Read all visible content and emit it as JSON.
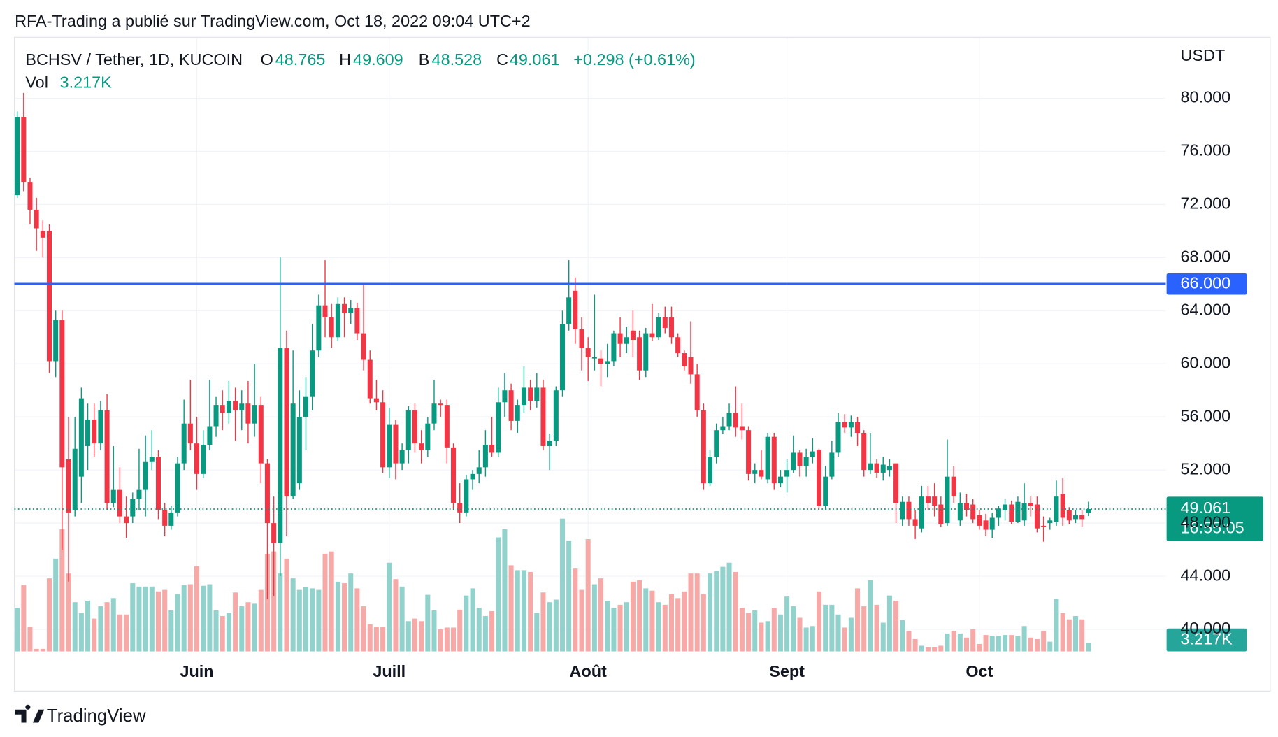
{
  "header": {
    "text": "RFA-Trading a publié sur TradingView.com, Oct 18, 2022 09:04 UTC+2"
  },
  "chart_data": {
    "type": "candlestick",
    "symbol": "BCHSV / Tether, 1D, KUCOIN",
    "ohlc_labels": [
      "O",
      "H",
      "B",
      "C"
    ],
    "change": "+0.298 (+0.61%)",
    "volume_name": "Vol",
    "volume_label": "3.217K",
    "axis_unit": "USDT",
    "up_color": "#089981",
    "down_color": "#f23645",
    "up_volume_color": "#92d2cc",
    "down_volume_color": "#f7a9a7",
    "grid": true,
    "ylim": [
      38.34,
      84.31
    ],
    "yticks": [
      {
        "value": 40,
        "label": "40.000"
      },
      {
        "value": 44,
        "label": "44.000"
      },
      {
        "value": 48,
        "label": "48.000"
      },
      {
        "value": 52,
        "label": "52.000"
      },
      {
        "value": 56,
        "label": "56.000"
      },
      {
        "value": 60,
        "label": "60.000"
      },
      {
        "value": 64,
        "label": "64.000"
      },
      {
        "value": 68,
        "label": "68.000"
      },
      {
        "value": 72,
        "label": "72.000"
      },
      {
        "value": 76,
        "label": "76.000"
      },
      {
        "value": 80,
        "label": "80.000"
      }
    ],
    "xticks": [
      {
        "value": 28,
        "label": "Juin"
      },
      {
        "value": 58,
        "label": "Juill"
      },
      {
        "value": 89,
        "label": "Août"
      },
      {
        "value": 120,
        "label": "Sept"
      },
      {
        "value": 150,
        "label": "Oct"
      }
    ],
    "hline": {
      "value": 66,
      "label": "66.000",
      "color": "#2962ff"
    },
    "countdown": "16:55:05",
    "open": [
      72.7,
      78.6,
      73.7,
      71.6,
      70,
      70,
      60.2,
      63.3,
      52.8,
      49,
      51.5,
      53.8,
      55.8,
      54,
      56.5,
      49.5,
      50.5,
      48.5,
      48.5,
      49.8,
      50.5,
      52.6,
      53,
      49,
      47.8,
      48.8,
      52.5,
      55.5,
      54,
      51.7,
      53.9,
      55.3,
      56.9,
      56.3,
      57.2,
      56.5,
      57,
      55.5,
      56.9,
      52.5,
      48,
      46.5,
      61.2,
      50,
      51,
      56,
      57.5,
      61,
      64.4,
      63.5,
      62,
      64.5,
      63.8,
      64.2,
      62.3,
      60.3,
      57.4,
      57.1,
      52.2,
      55.4,
      52.5,
      53.5,
      56.5,
      54,
      53.5,
      55.5,
      57,
      56.9,
      53.7,
      49.5,
      48.8,
      51.3,
      51.7,
      52.2,
      53.9,
      53.3,
      57.1,
      58,
      55.7,
      56.9,
      58.2,
      57.2,
      58.2,
      53.8,
      54.2,
      58,
      63,
      65.5,
      62.6,
      61.2,
      60.4,
      60.4,
      60,
      60.2,
      62.3,
      61.5,
      62.5,
      62,
      59.5,
      62.3,
      62,
      63.5,
      63.5,
      62,
      60.8,
      60.5,
      59.2,
      56.5,
      51,
      53,
      55,
      55.3,
      56.3,
      55.3,
      55,
      51.7,
      52,
      51.3,
      54.5,
      51,
      51.5,
      52,
      53.3,
      52.3,
      53,
      53.5,
      49.3,
      51.5,
      53.3,
      55.6,
      55.2,
      55.6,
      54.8,
      52,
      52.5,
      51.8,
      52,
      52.5,
      48.3,
      49.6,
      48.3,
      47.6,
      50,
      50,
      49.4,
      48,
      51.5,
      48.2,
      49.5,
      49.4,
      48.6,
      48.2,
      47.5,
      48.4,
      49,
      49.4,
      48.1,
      48.2,
      49.5,
      49.4,
      47.8,
      48,
      48.1,
      50.2,
      49,
      48.3,
      48.6,
      48.765
    ],
    "high": [
      79,
      80.4,
      74,
      72.5,
      70.8,
      70.5,
      64,
      64,
      56,
      56,
      58.2,
      57,
      57,
      57.2,
      57.7,
      53.8,
      52.2,
      50,
      50.3,
      53.6,
      54.6,
      55,
      53.5,
      49.5,
      49.3,
      53,
      57.3,
      58.8,
      56,
      55,
      58.8,
      57.5,
      58,
      58.7,
      58.2,
      58,
      58.7,
      60,
      57.5,
      52.8,
      50,
      68,
      62.5,
      61,
      58,
      59,
      63,
      65.2,
      67.8,
      64.5,
      65,
      65,
      64.8,
      64.6,
      66,
      61,
      58.8,
      58,
      56.7,
      55.8,
      54,
      56.8,
      57,
      55,
      56,
      58.8,
      57.3,
      57.3,
      54,
      51,
      51.6,
      52,
      53.5,
      55,
      56,
      58.2,
      59.3,
      58.5,
      57.3,
      59.8,
      58.8,
      59.3,
      58.8,
      54.7,
      58.3,
      64,
      67.8,
      66.5,
      63.5,
      62,
      65.2,
      61,
      61.5,
      62.5,
      63.5,
      62.8,
      64,
      62.5,
      62.7,
      64.5,
      63.8,
      64.3,
      64.3,
      62.3,
      61,
      63.2,
      60,
      57,
      53.5,
      55.5,
      56,
      57,
      58.3,
      57,
      55.3,
      52.5,
      53.5,
      54.8,
      54.8,
      52,
      52.8,
      54.6,
      53.5,
      53.6,
      54.4,
      53.6,
      52.3,
      54.2,
      56.3,
      56.2,
      56.1,
      56,
      55,
      54.8,
      52.8,
      53,
      52.8,
      52.5,
      50,
      50,
      49,
      50.8,
      50.8,
      51,
      50,
      54.3,
      52.3,
      50.3,
      50.2,
      49.8,
      49,
      48.7,
      48.8,
      49.3,
      49.8,
      49.7,
      50,
      51,
      50,
      50,
      48.5,
      48.4,
      51.2,
      51.4,
      49.2,
      49,
      49,
      49.609
    ],
    "low": [
      72.5,
      73,
      70.5,
      68.5,
      68,
      59.3,
      59,
      46,
      43.6,
      48.5,
      49.5,
      52,
      53,
      53.5,
      49,
      49.2,
      48,
      46.9,
      48,
      49,
      48.5,
      52,
      48.3,
      47,
      47.5,
      48.5,
      52,
      53.5,
      50.5,
      51.4,
      53.5,
      54.5,
      55,
      55.5,
      54.2,
      55,
      54,
      54.5,
      51,
      42.3,
      42.5,
      44,
      47,
      49.8,
      50.5,
      53.5,
      56.5,
      60.5,
      62,
      61.2,
      61.7,
      62,
      63,
      61.8,
      59.5,
      57,
      56.5,
      51.8,
      51.4,
      51.3,
      52,
      52.5,
      53.3,
      52.5,
      53,
      55,
      56,
      52.5,
      49,
      48,
      48.5,
      50.5,
      51,
      51.5,
      53,
      53,
      56,
      55,
      54.8,
      56.3,
      56.5,
      56.7,
      53.5,
      52,
      53.8,
      57.5,
      62.5,
      61.5,
      59.5,
      58.7,
      59.5,
      58.3,
      59,
      59.8,
      60.5,
      60.8,
      60.5,
      58.8,
      59,
      61.7,
      61.8,
      62.3,
      61.5,
      60.5,
      59.5,
      58.5,
      56,
      50.5,
      50.8,
      52.5,
      54.7,
      55,
      54.5,
      54.3,
      51.2,
      51,
      51.3,
      51,
      50.5,
      50.7,
      50.3,
      51.8,
      51.5,
      51.5,
      52.5,
      49,
      49,
      51.3,
      53,
      54.8,
      54.5,
      53.8,
      51.5,
      51.7,
      51.4,
      51.2,
      51.5,
      48,
      47.8,
      47.8,
      46.8,
      47.3,
      49,
      48.5,
      47.7,
      47.8,
      49.5,
      47.8,
      48.5,
      48,
      47.5,
      47,
      46.9,
      47.8,
      48.2,
      47.9,
      48,
      47.8,
      48.5,
      47.3,
      46.6,
      47.5,
      47.8,
      47.8,
      47.9,
      48,
      47.7,
      48.528
    ],
    "close": [
      78.6,
      73.7,
      71.6,
      70.2,
      69.5,
      60.2,
      63.3,
      52.2,
      48.8,
      53.6,
      57.4,
      55.8,
      54,
      56.5,
      49.5,
      50.5,
      48.5,
      48,
      49.8,
      50.5,
      52.6,
      53,
      49,
      47.8,
      48.8,
      52.5,
      55.5,
      54,
      51.7,
      53.9,
      55.3,
      56.9,
      56.3,
      57.2,
      56.5,
      57,
      55.5,
      56.9,
      52.5,
      48,
      46.5,
      61.2,
      50,
      57,
      56,
      57.5,
      61,
      64.4,
      63.5,
      62,
      64.5,
      63.8,
      64.2,
      62.3,
      60.3,
      57.4,
      57.1,
      52.2,
      55.4,
      52.5,
      53.5,
      56.5,
      54,
      53.5,
      55.5,
      57,
      56.9,
      53.7,
      49.5,
      48.8,
      51.3,
      51.7,
      52.2,
      53.9,
      53.3,
      57.1,
      58,
      55.7,
      56.9,
      58.2,
      57.2,
      58.2,
      53.8,
      54.2,
      58,
      63,
      65,
      62.6,
      61.2,
      60.5,
      60.5,
      60,
      60.2,
      62.3,
      61.5,
      62,
      61.8,
      59.5,
      62.3,
      62,
      63.5,
      62.7,
      62,
      60.8,
      59.8,
      59.2,
      56.5,
      51,
      53,
      55,
      55.3,
      56.3,
      55.2,
      55,
      51.7,
      52,
      51.5,
      54.5,
      51,
      51.5,
      52,
      53.3,
      52.3,
      53,
      53.4,
      49.3,
      51.5,
      53.3,
      55.6,
      55.2,
      55.6,
      54.8,
      52,
      52.5,
      51.8,
      52.4,
      52.3,
      49.5,
      49.6,
      48.3,
      47.8,
      50,
      49.5,
      49.3,
      47.9,
      51.5,
      50,
      49.5,
      49,
      48.3,
      47.8,
      47.5,
      48.4,
      49.1,
      49.4,
      48.1,
      49.6,
      49.5,
      49.3,
      47.6,
      47.7,
      48.2,
      50,
      48.4,
      48.2,
      48.6,
      48.3,
      49.061
    ],
    "volume": [
      17,
      25.9,
      9.6,
      1,
      1,
      28.5,
      36.2,
      47.7,
      30.4,
      19.2,
      15,
      19.8,
      12.8,
      17.6,
      19.2,
      20.8,
      14.4,
      14.4,
      26.6,
      25.3,
      25.3,
      25.3,
      23.4,
      24,
      16,
      22.4,
      25.9,
      26.2,
      33.3,
      25.6,
      26.2,
      16,
      13.8,
      15,
      23,
      17.6,
      19.2,
      18.6,
      24,
      38.1,
      39,
      30.4,
      36.2,
      28.5,
      24,
      25,
      24.6,
      24,
      38.1,
      39,
      27.2,
      26.6,
      30.4,
      24.6,
      17.6,
      10.6,
      9.6,
      9.6,
      34.6,
      28.2,
      25.3,
      11.8,
      12.8,
      11.8,
      22.1,
      16,
      8.6,
      9.3,
      9.3,
      16.3,
      21.8,
      24.6,
      17,
      13.8,
      15.7,
      44.5,
      47.7,
      33.6,
      31.7,
      31.7,
      31,
      15,
      23,
      19.2,
      20.2,
      51.8,
      43.2,
      32.3,
      24,
      43.8,
      26.2,
      28.5,
      19.8,
      17,
      18.2,
      19.2,
      27.2,
      27.8,
      24.6,
      23.7,
      19.2,
      18.2,
      22.4,
      20.8,
      23.4,
      30.4,
      30.4,
      22.4,
      30.4,
      31.4,
      33,
      34.6,
      31,
      17,
      15,
      16,
      11.2,
      11.8,
      17,
      14.4,
      21.4,
      17.6,
      13.1,
      9.3,
      9.9,
      23.4,
      18.2,
      18.2,
      14.4,
      9.3,
      13.1,
      24.6,
      17.6,
      27.8,
      18.2,
      11.2,
      21.8,
      19.8,
      12.2,
      8,
      4.8,
      2.2,
      1.6,
      1.6,
      2.2,
      7,
      8,
      7,
      5.4,
      8.6,
      2.9,
      6.4,
      6.1,
      6.1,
      6.4,
      6.4,
      6.1,
      9.9,
      5.4,
      4.8,
      8,
      3.8,
      20.5,
      15,
      12.5,
      13.8,
      12.5,
      3.217
    ]
  },
  "footer": {
    "brand": "TradingView"
  }
}
